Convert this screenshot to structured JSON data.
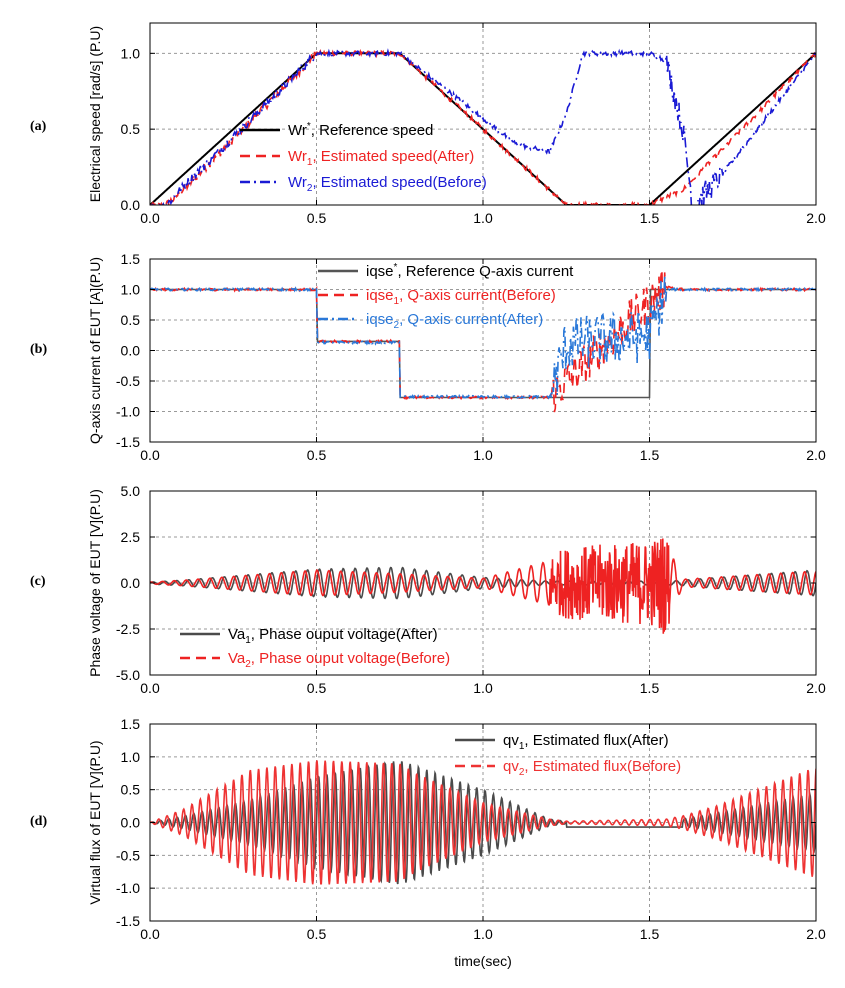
{
  "chart_data": [
    {
      "panel": "(a)",
      "type": "line",
      "ylabel": "Electrical speed [rad/s] (P.U)",
      "xlim": [
        0,
        2
      ],
      "ylim": [
        0,
        1.2
      ],
      "xticks": [
        "0.0",
        "0.5",
        "1.0",
        "1.5",
        "2.0"
      ],
      "yticks": [
        "0.0",
        "0.5",
        "1.0"
      ],
      "grid": true,
      "legend_position": "center",
      "series": [
        {
          "name": "Wr*, Reference speed",
          "legend": {
            "main": "Wr",
            "sup": "*",
            "rest": ", Reference speed"
          },
          "color": "#000000",
          "style": "solid",
          "x": [
            0,
            0.5,
            0.75,
            1.25,
            1.5,
            2.0
          ],
          "y": [
            0,
            1,
            1,
            0,
            0,
            1
          ]
        },
        {
          "name": "Wr1, Estimated speed(After)",
          "legend": {
            "main": "Wr",
            "sub": "1",
            "rest": ", Estimated speed(After)"
          },
          "color": "#ee2222",
          "style": "dash",
          "x": [
            0,
            0.05,
            0.1,
            0.5,
            0.75,
            1.25,
            1.5,
            1.6,
            2.0
          ],
          "y": [
            0,
            0,
            0.1,
            1,
            1,
            0,
            0,
            0.1,
            1
          ]
        },
        {
          "name": "Wr2, Estimated speed(Before)",
          "legend": {
            "main": "Wr",
            "sub": "2",
            "rest": ", Estimated speed(Before)"
          },
          "color": "#1a1ad4",
          "style": "dashdot",
          "x": [
            0,
            0.05,
            0.1,
            0.5,
            0.75,
            1.1,
            1.2,
            1.25,
            1.3,
            1.5,
            1.55,
            1.6,
            1.63,
            1.7,
            2.0
          ],
          "y": [
            0,
            0,
            0.12,
            1,
            1,
            0.4,
            0.35,
            0.6,
            1.0,
            1.0,
            0.95,
            0.5,
            0.0,
            0.15,
            1
          ]
        }
      ]
    },
    {
      "panel": "(b)",
      "type": "line",
      "ylabel": "Q-axis current of EUT [A](P.U)",
      "xlim": [
        0,
        2
      ],
      "ylim": [
        -1.5,
        1.5
      ],
      "xticks": [
        "0.0",
        "0.5",
        "1.0",
        "1.5",
        "2.0"
      ],
      "yticks": [
        "-1.5",
        "-1.0",
        "-0.5",
        "0.0",
        "0.5",
        "1.0",
        "1.5"
      ],
      "grid": true,
      "legend_position": "top-center",
      "series": [
        {
          "name": "iqse*, Reference Q-axis current",
          "legend": {
            "main": "iqse",
            "sup": "*",
            "rest": ",  Reference Q-axis current"
          },
          "color": "#555555",
          "style": "solid",
          "x": [
            0,
            0.5,
            0.5,
            0.75,
            0.75,
            1.5,
            1.5,
            2.0
          ],
          "y": [
            1,
            1,
            0.15,
            0.15,
            -0.77,
            -0.77,
            1,
            1
          ]
        },
        {
          "name": "iqse1, Q-axis current(Before)",
          "legend": {
            "main": "iqse",
            "sub": "1",
            "rest": ", Q-axis current(Before)"
          },
          "color": "#ee2222",
          "style": "dash",
          "x": [
            0,
            0.5,
            0.5,
            0.75,
            0.75,
            1.2,
            1.55,
            1.6,
            2.0
          ],
          "y": [
            1,
            1,
            0.15,
            0.15,
            -0.77,
            -0.77,
            1.05,
            1,
            1
          ]
        },
        {
          "name": "iqse2, Q-axis current(After)",
          "legend": {
            "main": "iqse",
            "sub": "2",
            "rest": ", Q-axis current(After)"
          },
          "color": "#2a78d8",
          "style": "dashdot",
          "x": [
            0,
            0.5,
            0.5,
            0.75,
            0.75,
            1.2,
            1.25,
            1.5,
            1.55,
            1.6,
            2.0
          ],
          "y": [
            1,
            1,
            0.13,
            0.13,
            -0.76,
            -0.76,
            0.1,
            0.25,
            1.0,
            1,
            1
          ]
        }
      ]
    },
    {
      "panel": "(c)",
      "type": "line",
      "ylabel": "Phase voltage of EUT [V](P.U)",
      "xlim": [
        0,
        2
      ],
      "ylim": [
        -5,
        5
      ],
      "xticks": [
        "0.0",
        "0.5",
        "1.0",
        "1.5",
        "2.0"
      ],
      "yticks": [
        "-5.0",
        "-2.5",
        "0.0",
        "2.5",
        "5.0"
      ],
      "grid": true,
      "legend_position": "bottom-left",
      "series": [
        {
          "name": "Va1, Phase ouput voltage(After)",
          "legend": {
            "main": "Va",
            "sub": "1",
            "rest": ", Phase ouput voltage(After)"
          },
          "color": "#4a4a4a",
          "style": "solid",
          "envelope_x": [
            0,
            0.1,
            0.5,
            0.75,
            1.0,
            1.2,
            1.25,
            1.5,
            1.55,
            1.6,
            2.0
          ],
          "envelope_y": [
            0.05,
            0.15,
            0.75,
            0.85,
            0.3,
            0.1,
            0.1,
            0.1,
            0.1,
            0.15,
            0.7
          ]
        },
        {
          "name": "Va2, Phase ouput voltage(Before)",
          "legend": {
            "main": "Va",
            "sub": "2",
            "rest": ", Phase ouput voltage(Before)"
          },
          "color": "#ee2222",
          "style": "dash",
          "envelope_x": [
            0,
            0.1,
            0.5,
            0.75,
            1.0,
            1.2,
            1.25,
            1.5,
            1.55,
            1.6,
            2.0
          ],
          "envelope_y": [
            0.05,
            0.15,
            0.7,
            0.5,
            0.25,
            1.2,
            1.5,
            1.8,
            2.2,
            0.2,
            0.65
          ]
        }
      ]
    },
    {
      "panel": "(d)",
      "type": "line",
      "ylabel": "Virtual flux of EUT [V](P.U)",
      "xlabel": "time(sec)",
      "xlim": [
        0,
        2
      ],
      "ylim": [
        -1.5,
        1.5
      ],
      "xticks": [
        "0.0",
        "0.5",
        "1.0",
        "1.5",
        "2.0"
      ],
      "yticks": [
        "-1.5",
        "-1.0",
        "-0.5",
        "0.0",
        "0.5",
        "1.0",
        "1.5"
      ],
      "grid": true,
      "legend_position": "top-right",
      "series": [
        {
          "name": "qv1, Estimated flux(After)",
          "legend": {
            "main": "qv",
            "sub": "1",
            "rest": ", Estimated flux(After)"
          },
          "color": "#4a4a4a",
          "style": "solid",
          "envelope_x": [
            0,
            0.1,
            0.3,
            0.5,
            0.75,
            1.0,
            1.2,
            1.25,
            1.55,
            1.65,
            2.0
          ],
          "envelope_y": [
            0,
            0.1,
            0.35,
            0.7,
            0.95,
            0.5,
            0.05,
            0.02,
            0.02,
            0.1,
            0.45
          ]
        },
        {
          "name": "qv2, Estimated flux(Before)",
          "legend": {
            "main": "qv",
            "sub": "2",
            "rest": ", Estimated flux(Before)"
          },
          "color": "#ee3333",
          "style": "dash",
          "envelope_x": [
            0,
            0.1,
            0.3,
            0.5,
            0.75,
            0.8,
            1.0,
            1.2,
            1.25,
            1.55,
            1.6,
            1.7,
            2.0
          ],
          "envelope_y": [
            0,
            0.2,
            0.8,
            0.95,
            0.9,
            0.75,
            0.3,
            0.05,
            0.02,
            0.05,
            0.1,
            0.25,
            0.85
          ]
        }
      ]
    }
  ]
}
